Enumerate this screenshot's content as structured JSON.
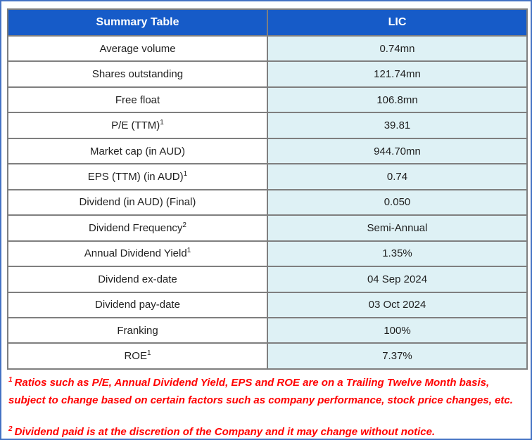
{
  "chart_data": {
    "type": "table",
    "title": "Summary Table",
    "columns": [
      "Summary Table",
      "LIC"
    ],
    "rows": [
      {
        "label": "Average volume",
        "sup": "",
        "value": "0.74mn"
      },
      {
        "label": "Shares outstanding",
        "sup": "",
        "value": "121.74mn"
      },
      {
        "label": "Free float",
        "sup": "",
        "value": "106.8mn"
      },
      {
        "label": "P/E (TTM)",
        "sup": "1",
        "value": "39.81"
      },
      {
        "label": "Market cap (in AUD)",
        "sup": "",
        "value": "944.70mn"
      },
      {
        "label": "EPS (TTM) (in AUD)",
        "sup": "1",
        "value": "0.74"
      },
      {
        "label": "Dividend (in AUD) (Final)",
        "sup": "",
        "value": "0.050"
      },
      {
        "label": "Dividend Frequency",
        "sup": "2",
        "value": "Semi-Annual"
      },
      {
        "label": "Annual Dividend Yield",
        "sup": "1",
        "value": "1.35%"
      },
      {
        "label": "Dividend ex-date",
        "sup": "",
        "value": "04 Sep 2024"
      },
      {
        "label": "Dividend pay-date",
        "sup": "",
        "value": "03 Oct 2024"
      },
      {
        "label": "Franking",
        "sup": "",
        "value": "100%"
      },
      {
        "label": "ROE",
        "sup": "1",
        "value": "7.37%"
      }
    ]
  },
  "footnotes": [
    {
      "sup": "1",
      "text": "Ratios such as P/E, Annual Dividend Yield, EPS and ROE are on a Trailing Twelve Month basis, subject to change based on certain factors such as company performance, stock price changes, etc."
    },
    {
      "sup": "2",
      "text": "Dividend paid is at the discretion of the Company and it may change without notice."
    }
  ],
  "colors": {
    "header_bg": "#165BC8",
    "header_text": "#FFFFFF",
    "value_cell_bg": "#DEF1F5",
    "label_cell_bg": "#FFFFFF",
    "table_border": "#7F7F7F",
    "outer_border": "#4472C4",
    "footnote_text": "#FF0000",
    "body_text": "#1F1F1F"
  }
}
